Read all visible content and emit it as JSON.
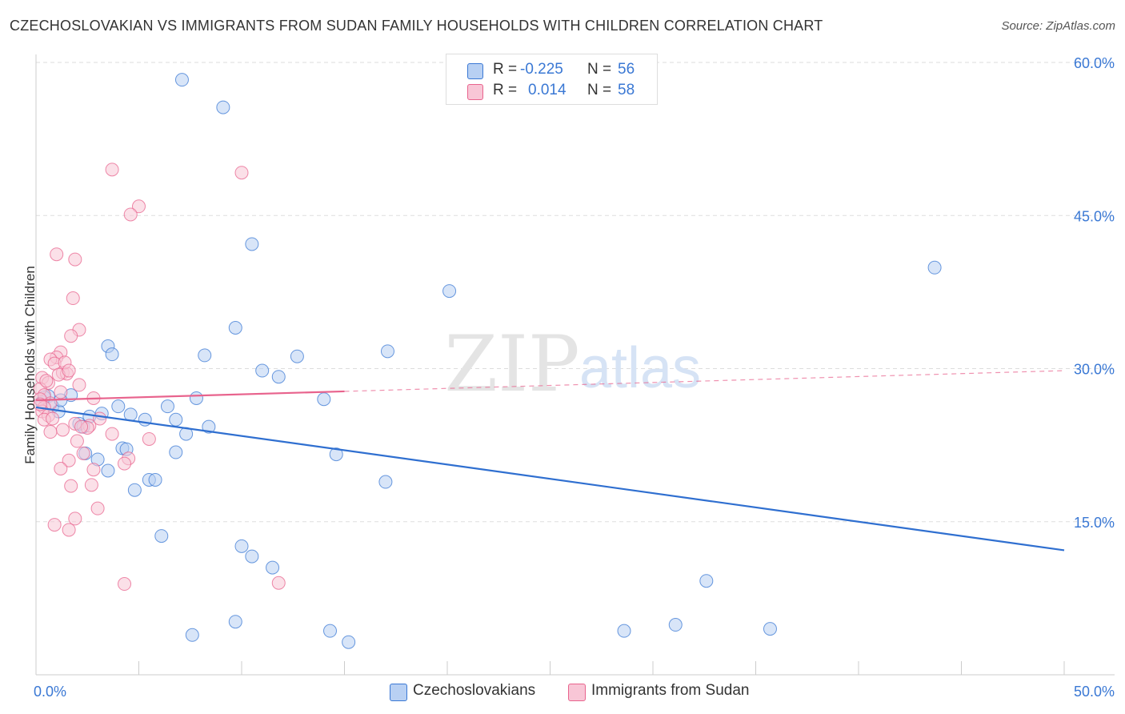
{
  "title": "CZECHOSLOVAKIAN VS IMMIGRANTS FROM SUDAN FAMILY HOUSEHOLDS WITH CHILDREN CORRELATION CHART",
  "source": "Source: ZipAtlas.com",
  "watermark": {
    "zip": "ZIP",
    "atlas": "atlas"
  },
  "colors": {
    "blue": "#3a78d4",
    "blue_fill": "#b8d0f3",
    "blue_line": "#2f6fd0",
    "pink": "#e8638d",
    "pink_fill": "#f8c6d6",
    "grid": "#dddddd",
    "axis_text": "#3a78d4"
  },
  "legend": {
    "rows": [
      {
        "r_label": "R =",
        "r_value": "-0.225",
        "n_label": "N =",
        "n_value": "56"
      },
      {
        "r_label": "R =",
        "r_value": "0.014",
        "n_label": "N =",
        "n_value": "58"
      }
    ]
  },
  "bottom_legend": {
    "czech": "Czechoslovakians",
    "sudan": "Immigrants from Sudan"
  },
  "chart_data": {
    "type": "scatter",
    "xlabel": "",
    "ylabel": "Family Households with Children",
    "xlim": [
      0,
      50
    ],
    "ylim": [
      0,
      60
    ],
    "x_tick_labels": [
      {
        "value": 0,
        "label": "0.0%"
      },
      {
        "value": 50,
        "label": "50.0%"
      }
    ],
    "y_tick_labels": [
      {
        "value": 15,
        "label": "15.0%"
      },
      {
        "value": 30,
        "label": "30.0%"
      },
      {
        "value": 45,
        "label": "45.0%"
      },
      {
        "value": 60,
        "label": "60.0%"
      }
    ],
    "x_minor_ticks": [
      0,
      5,
      10,
      15,
      20,
      25,
      30,
      35,
      40,
      45,
      50
    ],
    "series": [
      {
        "name": "Czechoslovakians",
        "r": -0.225,
        "n": 56,
        "trend": {
          "x": [
            0,
            50
          ],
          "y": [
            26.2,
            12.2
          ],
          "dashed_from": null
        },
        "points": [
          [
            7.1,
            58.3
          ],
          [
            9.1,
            55.6
          ],
          [
            10.5,
            42.2
          ],
          [
            43.7,
            39.9
          ],
          [
            20.1,
            37.6
          ],
          [
            9.7,
            34.0
          ],
          [
            3.5,
            32.2
          ],
          [
            12.7,
            31.2
          ],
          [
            8.2,
            31.3
          ],
          [
            17.1,
            31.7
          ],
          [
            3.7,
            31.4
          ],
          [
            11.0,
            29.8
          ],
          [
            11.8,
            29.2
          ],
          [
            1.7,
            27.4
          ],
          [
            0.6,
            27.3
          ],
          [
            7.8,
            27.1
          ],
          [
            0.3,
            26.7
          ],
          [
            0.8,
            26.3
          ],
          [
            14.0,
            27.0
          ],
          [
            4.0,
            26.3
          ],
          [
            6.4,
            26.3
          ],
          [
            1.1,
            25.8
          ],
          [
            3.2,
            25.6
          ],
          [
            4.6,
            25.5
          ],
          [
            2.6,
            25.3
          ],
          [
            5.3,
            25.0
          ],
          [
            6.8,
            25.0
          ],
          [
            2.1,
            24.6
          ],
          [
            2.3,
            24.3
          ],
          [
            8.4,
            24.3
          ],
          [
            7.3,
            23.6
          ],
          [
            4.2,
            22.2
          ],
          [
            4.4,
            22.1
          ],
          [
            6.8,
            21.8
          ],
          [
            2.4,
            21.7
          ],
          [
            14.6,
            21.6
          ],
          [
            3.0,
            21.1
          ],
          [
            3.5,
            20.0
          ],
          [
            17.0,
            18.9
          ],
          [
            5.5,
            19.1
          ],
          [
            5.8,
            19.1
          ],
          [
            4.8,
            18.1
          ],
          [
            6.1,
            13.6
          ],
          [
            10.0,
            12.6
          ],
          [
            10.5,
            11.6
          ],
          [
            11.5,
            10.5
          ],
          [
            32.6,
            9.2
          ],
          [
            9.7,
            5.2
          ],
          [
            7.6,
            3.9
          ],
          [
            14.3,
            4.3
          ],
          [
            15.2,
            3.2
          ],
          [
            28.6,
            4.3
          ],
          [
            31.1,
            4.9
          ],
          [
            35.7,
            4.5
          ],
          [
            0.4,
            27.2
          ],
          [
            1.2,
            26.9
          ]
        ]
      },
      {
        "name": "Immigrants from Sudan",
        "r": 0.014,
        "n": 58,
        "trend": {
          "x": [
            0,
            50
          ],
          "y": [
            26.9,
            29.8
          ],
          "dashed_from": 15
        },
        "points": [
          [
            3.7,
            49.5
          ],
          [
            10.0,
            49.2
          ],
          [
            5.0,
            45.9
          ],
          [
            4.6,
            45.1
          ],
          [
            1.0,
            41.2
          ],
          [
            1.9,
            40.7
          ],
          [
            1.8,
            36.9
          ],
          [
            2.1,
            33.8
          ],
          [
            1.7,
            33.2
          ],
          [
            1.2,
            31.6
          ],
          [
            1.0,
            31.1
          ],
          [
            0.7,
            30.9
          ],
          [
            0.9,
            30.5
          ],
          [
            1.3,
            29.6
          ],
          [
            1.5,
            29.5
          ],
          [
            1.1,
            29.4
          ],
          [
            0.3,
            29.1
          ],
          [
            0.6,
            28.6
          ],
          [
            2.1,
            28.4
          ],
          [
            0.2,
            28.0
          ],
          [
            1.2,
            27.7
          ],
          [
            0.4,
            27.4
          ],
          [
            0.2,
            27.0
          ],
          [
            2.8,
            27.1
          ],
          [
            0.7,
            26.6
          ],
          [
            0.4,
            26.2
          ],
          [
            0.3,
            25.8
          ],
          [
            0.6,
            25.4
          ],
          [
            0.4,
            25.0
          ],
          [
            3.1,
            25.1
          ],
          [
            1.9,
            24.6
          ],
          [
            2.6,
            24.4
          ],
          [
            1.3,
            24.0
          ],
          [
            2.5,
            24.2
          ],
          [
            0.7,
            23.8
          ],
          [
            3.7,
            23.6
          ],
          [
            5.5,
            23.1
          ],
          [
            2.0,
            22.9
          ],
          [
            2.3,
            21.7
          ],
          [
            4.5,
            21.2
          ],
          [
            1.6,
            21.0
          ],
          [
            4.3,
            20.7
          ],
          [
            1.2,
            20.2
          ],
          [
            2.8,
            20.1
          ],
          [
            2.7,
            18.6
          ],
          [
            1.7,
            18.5
          ],
          [
            3.0,
            16.3
          ],
          [
            1.9,
            15.3
          ],
          [
            0.9,
            14.7
          ],
          [
            1.6,
            14.2
          ],
          [
            4.3,
            8.9
          ],
          [
            11.8,
            9.0
          ],
          [
            0.5,
            28.8
          ],
          [
            1.4,
            30.6
          ],
          [
            0.2,
            26.5
          ],
          [
            0.8,
            25.1
          ],
          [
            2.2,
            24.3
          ],
          [
            1.6,
            29.8
          ]
        ]
      }
    ]
  }
}
